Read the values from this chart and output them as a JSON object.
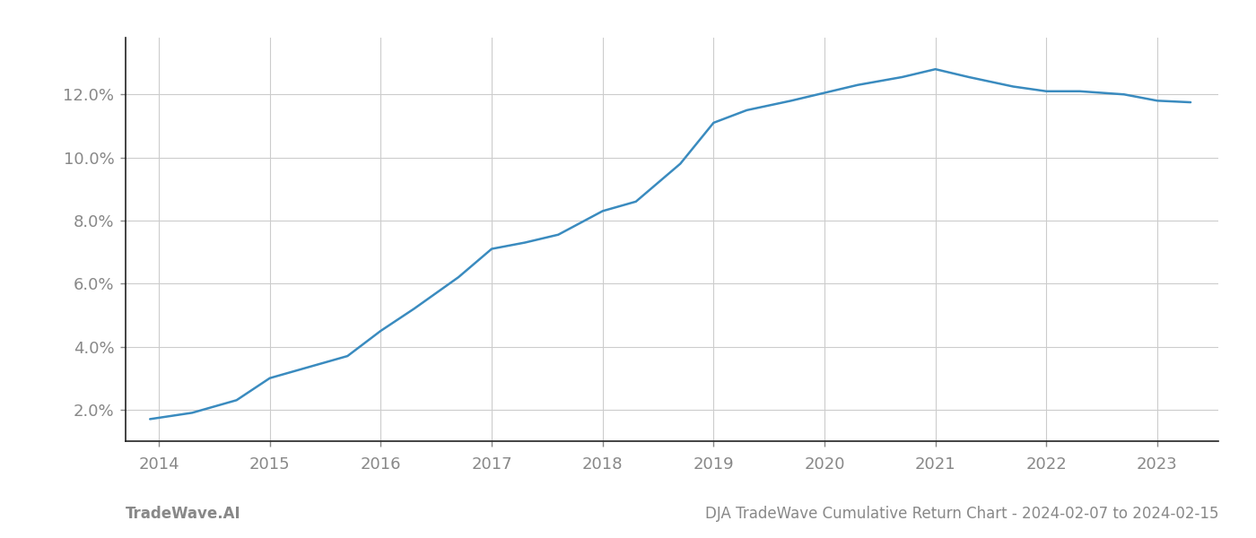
{
  "x_values": [
    2013.92,
    2014.3,
    2014.7,
    2015.0,
    2015.3,
    2015.7,
    2016.0,
    2016.3,
    2016.7,
    2017.0,
    2017.3,
    2017.6,
    2018.0,
    2018.3,
    2018.7,
    2019.0,
    2019.3,
    2019.7,
    2020.0,
    2020.3,
    2020.7,
    2021.0,
    2021.3,
    2021.7,
    2022.0,
    2022.3,
    2022.7,
    2023.0,
    2023.3
  ],
  "y_values": [
    1.7,
    1.9,
    2.3,
    3.0,
    3.3,
    3.7,
    4.5,
    5.2,
    6.2,
    7.1,
    7.3,
    7.55,
    8.3,
    8.6,
    9.8,
    11.1,
    11.5,
    11.8,
    12.05,
    12.3,
    12.55,
    12.8,
    12.55,
    12.25,
    12.1,
    12.1,
    12.0,
    11.8,
    11.75
  ],
  "line_color": "#3a8bbf",
  "line_width": 1.8,
  "background_color": "#ffffff",
  "grid_color": "#cccccc",
  "tick_color": "#888888",
  "x_ticks": [
    2014,
    2015,
    2016,
    2017,
    2018,
    2019,
    2020,
    2021,
    2022,
    2023
  ],
  "x_tick_labels": [
    "2014",
    "2015",
    "2016",
    "2017",
    "2018",
    "2019",
    "2020",
    "2021",
    "2022",
    "2023"
  ],
  "y_ticks": [
    2.0,
    4.0,
    6.0,
    8.0,
    10.0,
    12.0
  ],
  "y_tick_labels": [
    "2.0%",
    "4.0%",
    "6.0%",
    "8.0%",
    "10.0%",
    "12.0%"
  ],
  "xlim": [
    2013.7,
    2023.55
  ],
  "ylim": [
    1.0,
    13.8
  ],
  "footer_left": "TradeWave.AI",
  "footer_right": "DJA TradeWave Cumulative Return Chart - 2024-02-07 to 2024-02-15",
  "footer_color": "#888888",
  "footer_fontsize": 12
}
